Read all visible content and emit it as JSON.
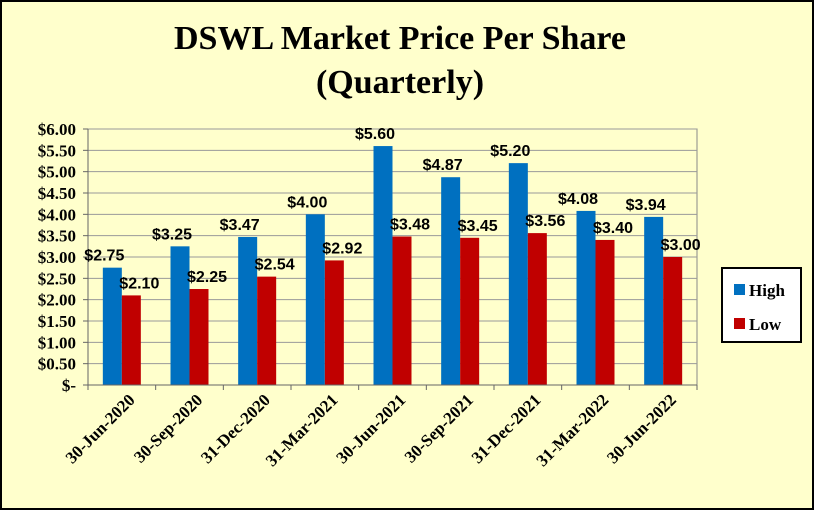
{
  "chart_data": {
    "type": "bar",
    "title": "DSWL Market Price Per Share",
    "subtitle": "(Quarterly)",
    "xlabel": "",
    "ylabel": "",
    "categories": [
      "30-Jun-2020",
      "30-Sep-2020",
      "31-Dec-2020",
      "31-Mar-2021",
      "30-Jun-2021",
      "30-Sep-2021",
      "31-Dec-2021",
      "31-Mar-2022",
      "30-Jun-2022"
    ],
    "series": [
      {
        "name": "High",
        "color": "#0070c0",
        "values": [
          2.75,
          3.25,
          3.47,
          4.0,
          5.6,
          4.87,
          5.2,
          4.08,
          3.94
        ],
        "labels": [
          "$2.75",
          "$3.25",
          "$3.47",
          "$4.00",
          "$5.60",
          "$4.87",
          "$5.20",
          "$4.08",
          "$3.94"
        ]
      },
      {
        "name": "Low",
        "color": "#c00000",
        "values": [
          2.1,
          2.25,
          2.54,
          2.92,
          3.48,
          3.45,
          3.56,
          3.4,
          3.0
        ],
        "labels": [
          "$2.10",
          "$2.25",
          "$2.54",
          "$2.92",
          "$3.48",
          "$3.45",
          "$3.56",
          "$3.40",
          "$3.00"
        ]
      }
    ],
    "ylim": [
      0,
      6
    ],
    "yticks": [
      0,
      0.5,
      1,
      1.5,
      2,
      2.5,
      3,
      3.5,
      4,
      4.5,
      5,
      5.5,
      6
    ],
    "ytick_labels": [
      "$-",
      "$0.50",
      "$1.00",
      "$1.50",
      "$2.00",
      "$2.50",
      "$3.00",
      "$3.50",
      "$4.00",
      "$4.50",
      "$5.00",
      "$5.50",
      "$6.00"
    ],
    "grid": true,
    "legend_position": "right",
    "plot_background": "#ffffcc",
    "page_background": "#ffffcc"
  }
}
